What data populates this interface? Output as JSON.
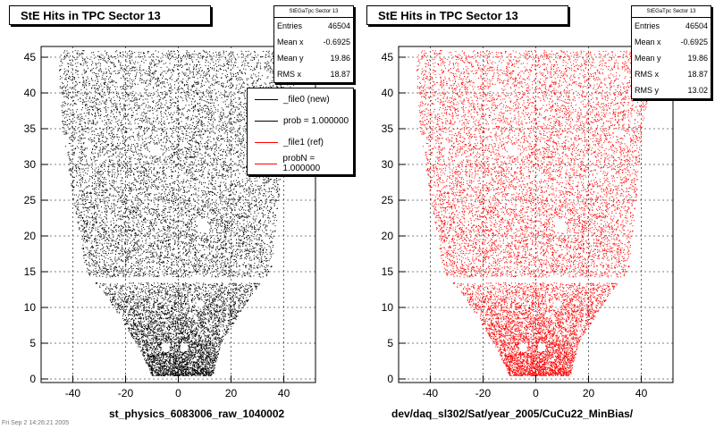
{
  "chart_data": [
    {
      "type": "scatter",
      "title": "StE Hits in TPC Sector 13",
      "xlabel": "st_physics_6083006_raw_1040002",
      "ylabel": "",
      "xlim": [
        -52,
        52
      ],
      "ylim": [
        -0.5,
        46.5
      ],
      "x_ticks": [
        -40,
        -20,
        0,
        20,
        40
      ],
      "y_ticks": [
        0,
        5,
        10,
        15,
        20,
        25,
        30,
        35,
        40,
        45
      ],
      "grid": true,
      "marker_color": "#000000",
      "stats": {
        "name": "StEGaTpc Sector 13",
        "rows": [
          {
            "label": "Entries",
            "value": "46504"
          },
          {
            "label": "Mean x",
            "value": "-0.6925"
          },
          {
            "label": "Mean y",
            "value": "19.86"
          },
          {
            "label": "RMS x",
            "value": "18.87"
          }
        ]
      },
      "legend": {
        "placement": "right",
        "entries": [
          {
            "label": "_file0 (new)",
            "color": "#000000"
          },
          {
            "label": "prob = 1.000000",
            "color": "#000000"
          },
          {
            "label": "_file1 (ref)",
            "color": "#ff0000"
          },
          {
            "label": "probN = 1.000000",
            "color": "#ff0000"
          }
        ]
      },
      "distribution": {
        "entries": 46504,
        "shape_rows": [
          {
            "y": 0.5,
            "x_min": -10,
            "x_max": 13
          },
          {
            "y": 5,
            "x_min": -16,
            "x_max": 16
          },
          {
            "y": 12,
            "x_min": -28,
            "x_max": 28
          },
          {
            "y": 15,
            "x_min": -35,
            "x_max": 35
          },
          {
            "y": 25,
            "x_min": -40,
            "x_max": 38
          },
          {
            "y": 35,
            "x_min": -44,
            "x_max": 40
          },
          {
            "y": 45,
            "x_min": -46,
            "x_max": 46
          }
        ]
      }
    },
    {
      "type": "scatter",
      "title": "StE Hits in TPC Sector 13",
      "xlabel": "dev/daq_sl302/Sat/year_2005/CuCu22_MinBias/",
      "ylabel": "",
      "xlim": [
        -52,
        52
      ],
      "ylim": [
        -0.5,
        46.5
      ],
      "x_ticks": [
        -40,
        -20,
        0,
        20,
        40
      ],
      "y_ticks": [
        0,
        5,
        10,
        15,
        20,
        25,
        30,
        35,
        40,
        45
      ],
      "grid": true,
      "marker_color": "#ff0000",
      "stats": {
        "name": "StEGaTpc Sector 13",
        "rows": [
          {
            "label": "Entries",
            "value": "46504"
          },
          {
            "label": "Mean x",
            "value": "-0.6925"
          },
          {
            "label": "Mean y",
            "value": "19.86"
          },
          {
            "label": "RMS x",
            "value": "18.87"
          },
          {
            "label": "RMS y",
            "value": "13.02"
          }
        ]
      },
      "distribution": {
        "entries": 46504,
        "shape_rows": [
          {
            "y": 0.5,
            "x_min": -10,
            "x_max": 13
          },
          {
            "y": 5,
            "x_min": -16,
            "x_max": 16
          },
          {
            "y": 12,
            "x_min": -28,
            "x_max": 28
          },
          {
            "y": 15,
            "x_min": -35,
            "x_max": 35
          },
          {
            "y": 25,
            "x_min": -40,
            "x_max": 38
          },
          {
            "y": 35,
            "x_min": -44,
            "x_max": 40
          },
          {
            "y": 45,
            "x_min": -46,
            "x_max": 46
          }
        ]
      }
    }
  ],
  "footer_note": "Fri Sep  2 14:26:21 2005"
}
